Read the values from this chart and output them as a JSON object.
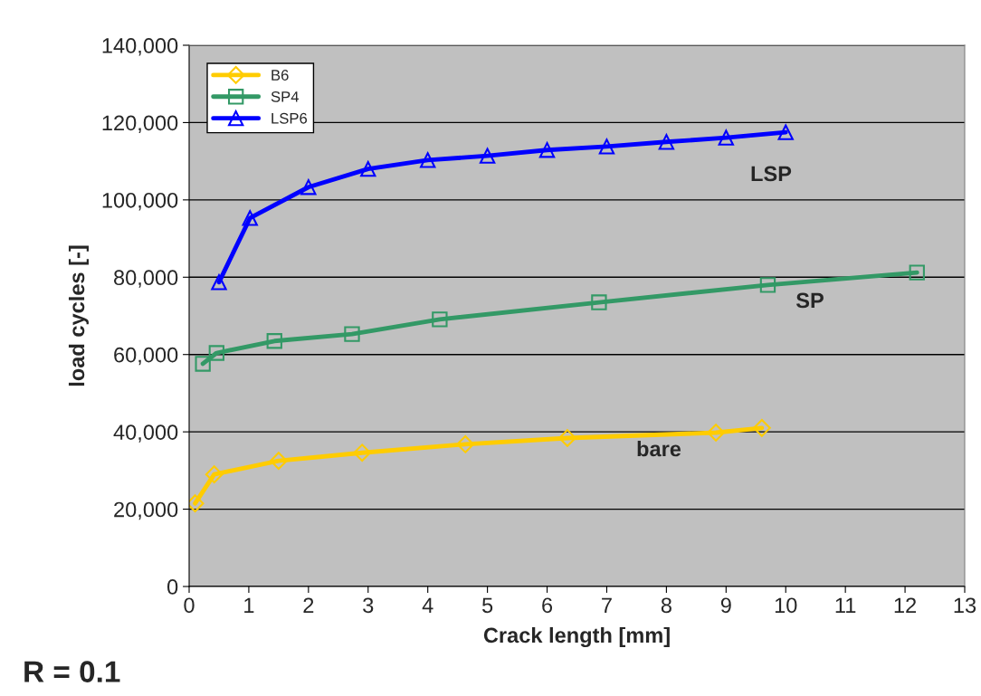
{
  "chart_data": {
    "type": "line",
    "xlabel": "Crack length [mm]",
    "ylabel": "load cycles [-]",
    "xlim": [
      0,
      13
    ],
    "xticks": [
      0,
      1,
      2,
      3,
      4,
      5,
      6,
      7,
      8,
      9,
      10,
      11,
      12,
      13
    ],
    "ylim": [
      0,
      140000
    ],
    "yticks": [
      {
        "value": 0,
        "label": "0"
      },
      {
        "value": 20000,
        "label": "20,000"
      },
      {
        "value": 40000,
        "label": "40,000"
      },
      {
        "value": 60000,
        "label": "60,000"
      },
      {
        "value": 80000,
        "label": "80,000"
      },
      {
        "value": 100000,
        "label": "100,000"
      },
      {
        "value": 120000,
        "label": "120,000"
      },
      {
        "value": 140000,
        "label": "140,000"
      }
    ],
    "grid": "y",
    "legend": "top left",
    "series": [
      {
        "name": "B6",
        "color": "#ffcc00",
        "marker": "diamond",
        "x": [
          0.1,
          0.42,
          1.5,
          2.9,
          4.63,
          6.34,
          8.83,
          9.6
        ],
        "values": [
          21500,
          29000,
          32500,
          34600,
          36800,
          38400,
          39800,
          41000
        ]
      },
      {
        "name": "SP4",
        "color": "#339966",
        "marker": "square",
        "x": [
          0.23,
          0.46,
          1.43,
          2.73,
          4.2,
          6.87,
          9.7,
          12.2
        ],
        "values": [
          57600,
          60400,
          63500,
          65300,
          69100,
          73500,
          78000,
          81200
        ]
      },
      {
        "name": "LSP6",
        "color": "#0000ff",
        "marker": "triangle",
        "x": [
          0.5,
          1.02,
          2,
          3,
          4,
          5,
          6,
          7,
          8,
          9,
          10
        ],
        "values": [
          78700,
          95300,
          103300,
          108000,
          110300,
          111400,
          112900,
          113800,
          115000,
          116100,
          117500
        ]
      }
    ],
    "annotations": [
      "LSP",
      "SP",
      "bare",
      "R = 0.1"
    ]
  }
}
